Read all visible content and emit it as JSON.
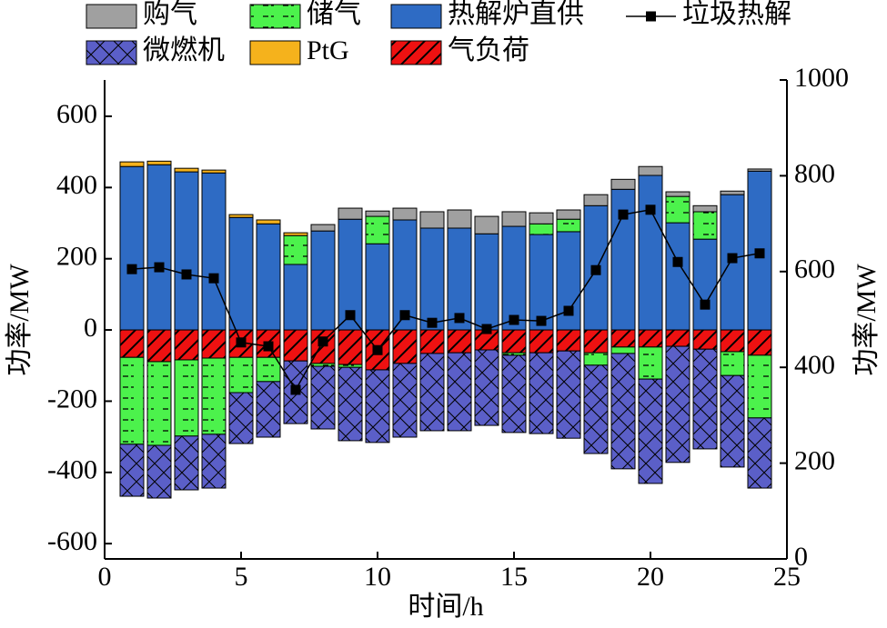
{
  "chart_data": {
    "type": "bar",
    "stacked": true,
    "x_label": "时间/h",
    "y_label": "功率/MW",
    "y2_label": "功率/MW",
    "x": [
      1,
      2,
      3,
      4,
      5,
      6,
      7,
      8,
      9,
      10,
      11,
      12,
      13,
      14,
      15,
      16,
      17,
      18,
      19,
      20,
      21,
      22,
      23,
      24
    ],
    "xlim": [
      0,
      25
    ],
    "xticks": [
      0,
      5,
      10,
      15,
      20,
      25
    ],
    "ylim": [
      -643,
      702
    ],
    "yticks": [
      -600,
      -400,
      -200,
      0,
      200,
      400,
      600
    ],
    "y2lim": [
      0,
      1000
    ],
    "y2ticks": [
      0,
      200,
      400,
      600,
      800,
      1000
    ],
    "series": [
      {
        "name": "购气",
        "color": "#a0a0a0",
        "hatch": "none",
        "values": [
          0,
          0,
          0,
          0,
          0,
          0,
          0,
          18,
          31,
          15,
          33,
          46,
          51,
          49,
          41,
          31,
          26,
          31,
          28,
          25,
          13,
          17,
          10,
          6
        ]
      },
      {
        "name": "储气",
        "color": "#4cf24c",
        "hatch": "dash",
        "values": [
          -244,
          -235,
          -214,
          -214,
          -99,
          -68,
          81,
          -8,
          -8,
          77,
          0,
          0,
          0,
          0,
          -7,
          30,
          35,
          -35,
          -18,
          -90,
          74,
          77,
          -67,
          -176
        ]
      },
      {
        "name": "热解炉直供",
        "color": "#2e6bc4",
        "hatch": "none",
        "values": [
          459,
          464,
          444,
          441,
          316,
          298,
          184,
          278,
          311,
          242,
          309,
          286,
          286,
          270,
          291,
          268,
          276,
          349,
          395,
          434,
          301,
          255,
          380,
          446
        ]
      },
      {
        "name": "微燃机",
        "color": "#5b5fc8",
        "hatch": "cross",
        "values": [
          -146,
          -148,
          -151,
          -151,
          -143,
          -156,
          -176,
          -176,
          -206,
          -204,
          -207,
          -217,
          -219,
          -212,
          -217,
          -227,
          -245,
          -248,
          -324,
          -293,
          -326,
          -280,
          -257,
          -197
        ]
      },
      {
        "name": "PtG",
        "color": "#f5b21c",
        "hatch": "none",
        "values": [
          13,
          10,
          10,
          8,
          8,
          11,
          8,
          0,
          0,
          0,
          0,
          0,
          0,
          0,
          0,
          0,
          0,
          0,
          0,
          0,
          0,
          0,
          0,
          0
        ]
      },
      {
        "name": "气负荷",
        "color": "#ee1111",
        "hatch": "diag",
        "values": [
          -77,
          -89,
          -84,
          -79,
          -77,
          -77,
          -87,
          -94,
          -97,
          -112,
          -94,
          -66,
          -64,
          -56,
          -64,
          -64,
          -59,
          -64,
          -48,
          -48,
          -46,
          -54,
          -61,
          -71
        ]
      },
      {
        "name": "垃圾热解",
        "type": "line",
        "axis": "y2",
        "color": "#000000",
        "values": [
          605,
          609,
          594,
          586,
          452,
          444,
          353,
          454,
          509,
          436,
          509,
          493,
          503,
          480,
          499,
          497,
          518,
          603,
          719,
          729,
          620,
          531,
          628,
          638
        ]
      }
    ]
  }
}
